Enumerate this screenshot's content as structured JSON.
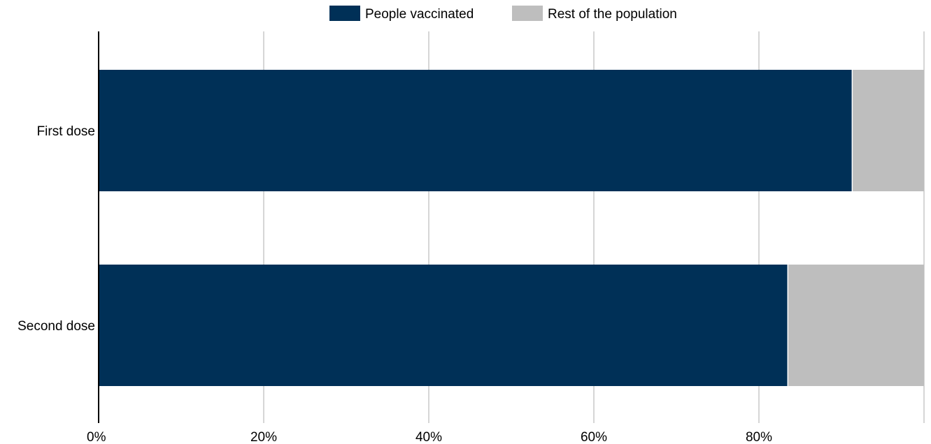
{
  "chart_data": {
    "type": "bar",
    "orientation": "horizontal",
    "stacked": true,
    "categories": [
      "First dose",
      "Second dose"
    ],
    "series": [
      {
        "name": "People vaccinated",
        "values": [
          91.3,
          83.5
        ],
        "color": "#003057"
      },
      {
        "name": "Rest of the population",
        "values": [
          8.7,
          16.5
        ],
        "color": "#bebebe"
      }
    ],
    "xlim": [
      0,
      100
    ],
    "x_ticks": [
      0,
      20,
      40,
      60,
      80
    ],
    "x_tick_labels": [
      "0%",
      "20%",
      "40%",
      "60%",
      "80%"
    ],
    "grid": true,
    "legend_position": "top-center",
    "title": "",
    "xlabel": "",
    "ylabel": ""
  }
}
